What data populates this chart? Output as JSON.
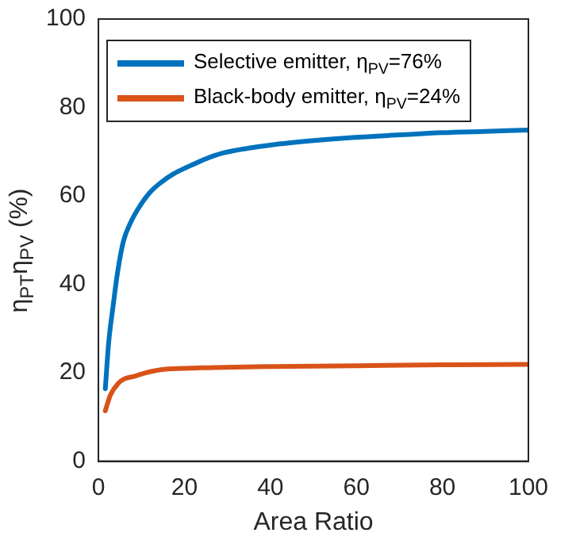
{
  "chart_data": {
    "type": "line",
    "xlabel": "Area Ratio",
    "ylabel": "η$_{PT}$η$_{PV}$ (%)",
    "xlim": [
      0,
      100
    ],
    "ylim": [
      0,
      100
    ],
    "xticks": [
      0,
      20,
      40,
      60,
      80,
      100
    ],
    "yticks": [
      0,
      20,
      40,
      60,
      80,
      100
    ],
    "grid": false,
    "legend": "top left",
    "marker": "none",
    "line_style": "solid",
    "series": [
      {
        "name": "Selective emitter, η$_{PV}$=76%",
        "color": "#0072bd",
        "x": [
          1.6,
          2.4,
          3.4,
          4.5,
          5.8,
          7.5,
          9.5,
          12,
          14.5,
          17.5,
          20.6,
          25,
          29,
          35,
          40,
          50,
          59,
          70,
          80,
          90,
          100
        ],
        "values": [
          16.4,
          27,
          35,
          43,
          49.7,
          54,
          57.5,
          60.8,
          63,
          65,
          66.5,
          68.4,
          69.7,
          70.8,
          71.5,
          72.5,
          73.2,
          73.8,
          74.3,
          74.6,
          74.9
        ]
      },
      {
        "name": "Black-body emitter, η$_{PV}$=24%",
        "color": "#d95319",
        "x": [
          1.6,
          2.8,
          4.6,
          6,
          8.3,
          11,
          14.5,
          20,
          27,
          40,
          60,
          80,
          100
        ],
        "values": [
          11.4,
          15,
          17.6,
          18.6,
          19.2,
          20,
          20.7,
          21,
          21.2,
          21.4,
          21.6,
          21.8,
          21.9
        ]
      }
    ]
  }
}
